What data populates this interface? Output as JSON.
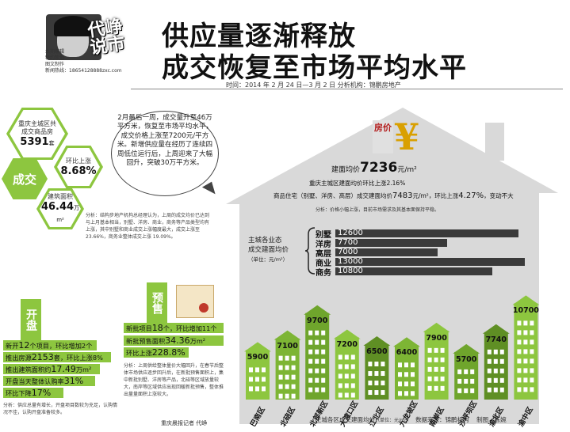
{
  "header": {
    "brand": "代峥说市",
    "byline": [
      "本期编辑",
      "特约策划",
      "图文制作",
      "新闻热线：18654128888zxc.com"
    ],
    "title_line1": "供应量逐渐释放",
    "title_line2": "成交恢复至市场平均水平",
    "timeline": "时间：2014 年 2 月 24 日—3 月 2 日    分析机构：锦鹏房地产"
  },
  "left_stats": {
    "main_hex_label": "重庆主城区共成交商品房",
    "main_hex_value": "5391",
    "main_hex_unit": "套",
    "chengjiao": "成交",
    "huanbi_label": "环比上涨",
    "huanbi_value": "8.68%",
    "area_label": "建筑面积",
    "area_value": "46.44",
    "area_unit": "万 m²"
  },
  "bubble": {
    "text": "2月最后一周，成交量升至46万平方米，恢复至市场平均水平，成交价格上涨至7200元/平方米。新增供应量在经历了连续四周低位运行后，上周迎来了大幅回升，突破30万平方米。"
  },
  "analysis_left": {
    "text": "分析：结构步地产机构总经理认为，上周的成交均价已达到与上月基本相当，别墅、洋房、商业，商务等产品类型均有上涨，其中别墅和商业成交上涨幅度最大，成交上涨至 23.66%，商务业整体成交上涨 19.09%。"
  },
  "kaipan": {
    "label": "开盘",
    "rows": [
      {
        "pre": "新开",
        "num": "12",
        "post": "个项目，环比增加2个"
      },
      {
        "pre": "推出房源",
        "num": "2153",
        "post": "套，环比上涨8%"
      },
      {
        "pre": "推出建筑面积约",
        "num": "17.49",
        "post": "万m²"
      },
      {
        "pre": "开盘当天整体认购率",
        "num": "31%",
        "post": ""
      },
      {
        "pre": "环比下降",
        "num": "17%",
        "post": ""
      }
    ],
    "analysis": "分析：供应总量有增长，开盘项目数较为充足，认购情况不佳，认购开盘准备较多。"
  },
  "yushou": {
    "label": "预售",
    "rows": [
      {
        "pre": "新批项目",
        "num": "18",
        "post": "个，环比增加11个"
      },
      {
        "pre": "新批预售面积",
        "num": "34.36",
        "post": "万m²"
      },
      {
        "pre": "环比上涨",
        "num": "228.8%",
        "post": ""
      }
    ],
    "analysis": "分析：上周供给整体量价大幅回升，在春节后整体市场供应逐步回升后，在新批预售面积上，集中新批别墅、洋房等产品，北碚等区域放量较大，南岸等区域供应出现回暖新批预售，整体推出量量面积上涨较大。",
    "credit": "重庆晨报记者  代峥"
  },
  "house": {
    "price_label": "房价",
    "avg_label": "建面均价",
    "avg_value": "7236",
    "avg_unit": "元/m²",
    "line1": "重庆主城区建面均价环比上涨2.16%",
    "line2_pre": "商品住宅（别墅、洋房、高层）成交建面均价",
    "line2_num": "7483",
    "line2_mid": "元/m²，环比上涨",
    "line2_pct": "4.27%",
    "line2_post": "，变动不大",
    "note": "分析：价格小幅上涨，目前市场需求及其基本面保持平稳。"
  },
  "business_chart": {
    "label_line1": "主城各业态",
    "label_line2": "成交建面均价",
    "label_unit": "（单位：元/m²）"
  },
  "chart_data": [
    {
      "type": "bar",
      "title": "主城各业态成交建面均价",
      "ylabel": "（单位：元/m²）",
      "categories": [
        "别墅",
        "洋房",
        "高层",
        "商业",
        "商务"
      ],
      "values": [
        12600,
        7700,
        7000,
        13000,
        10800
      ]
    },
    {
      "type": "bar",
      "title": "主城各区成交建面均价",
      "ylabel": "（单位：元/m²）",
      "categories": [
        "巴南区",
        "北碚区",
        "北部新区",
        "大渡口区",
        "江北区",
        "九龙坡区",
        "南岸区",
        "沙坪坝区",
        "渝北区",
        "渝中区"
      ],
      "values": [
        5900,
        7100,
        9700,
        7200,
        6500,
        6400,
        7900,
        5700,
        7740,
        10700
      ]
    }
  ],
  "footer": {
    "title": "主城各区成交建面均价",
    "unit": "（单位：元/m²）",
    "source": "数据来源：锦鹏机构",
    "credit": "制图／陈婉"
  },
  "colors": {
    "accent_green": "#8dc63f",
    "house_gray": "#d9d9d9",
    "bar_dark": "#3a3a3a",
    "yen_gold": "#d9a000",
    "price_red": "#b31b1b"
  }
}
